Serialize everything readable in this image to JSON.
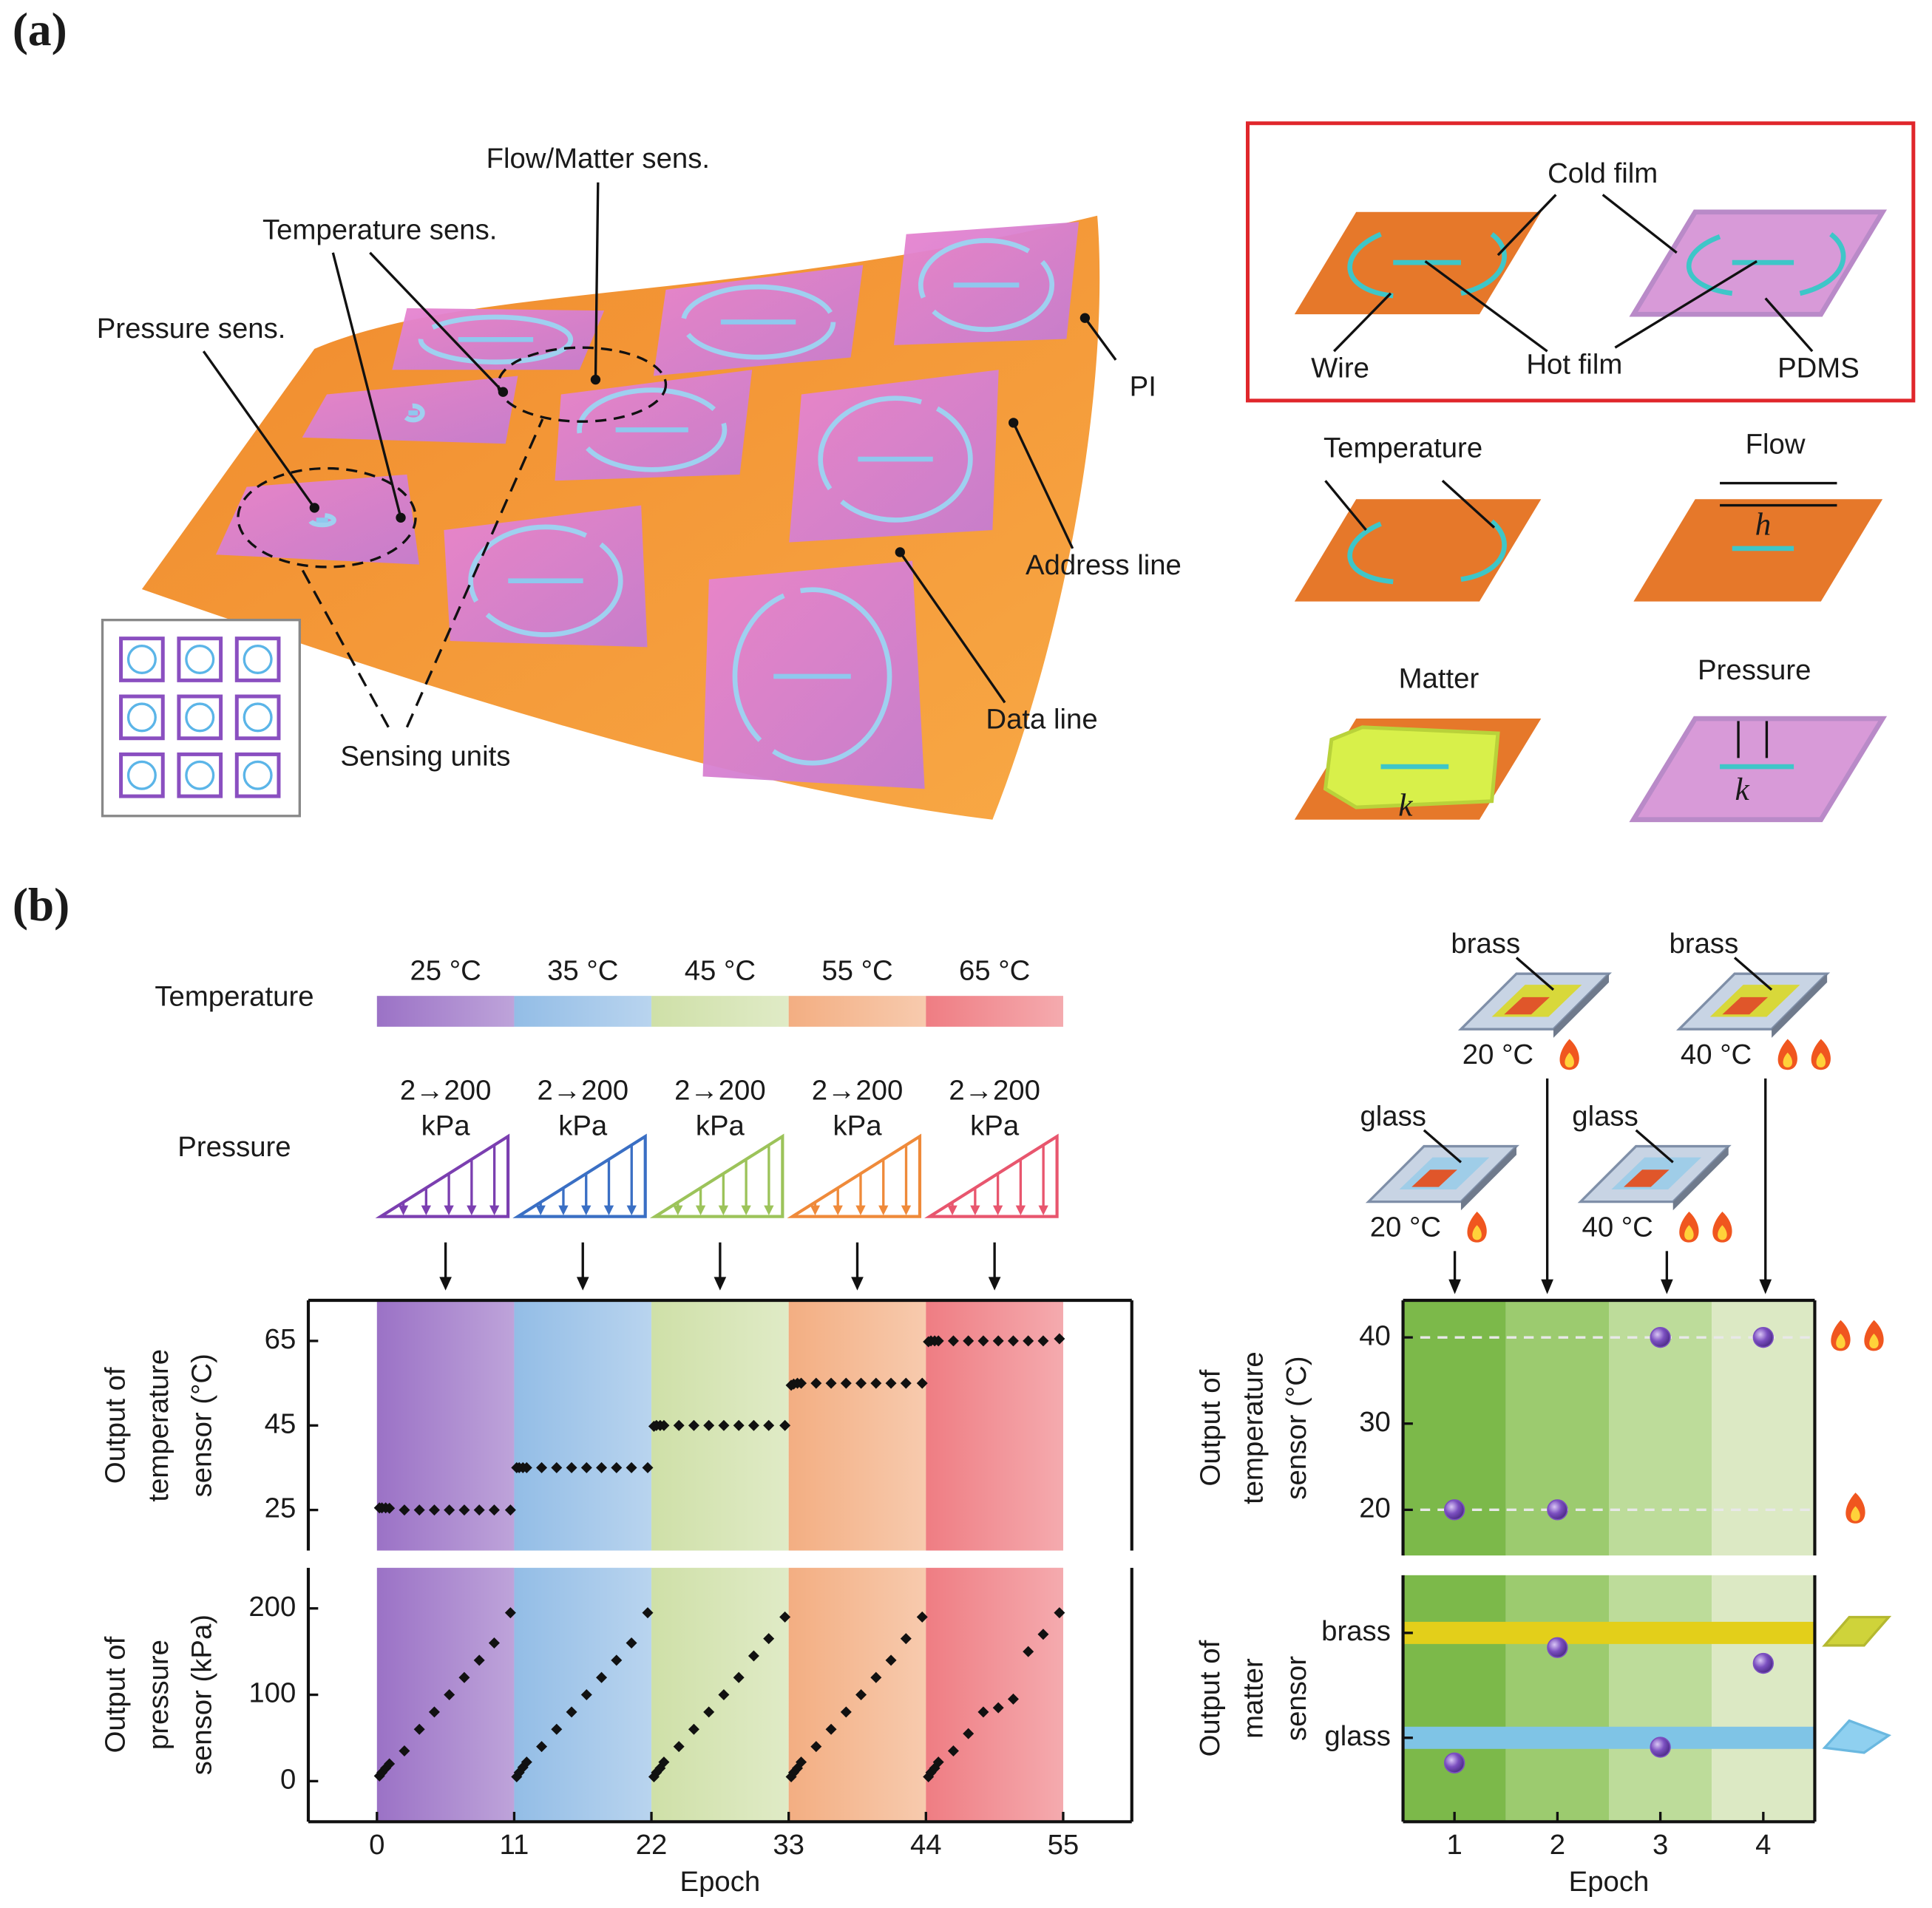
{
  "panel_a": {
    "label": "(a)",
    "callouts": {
      "flow_matter": "Flow/Matter sens.",
      "temperature": "Temperature sens.",
      "pressure": "Pressure sens.",
      "pi": "PI",
      "address": "Address line",
      "data": "Data line",
      "units": "Sensing units"
    },
    "inset": {
      "cold_film": "Cold film",
      "wire": "Wire",
      "hot_film": "Hot film",
      "pdms": "PDMS"
    },
    "modes": {
      "temperature": "Temperature",
      "flow": "Flow",
      "matter": "Matter",
      "pressure": "Pressure",
      "h": "h",
      "k_matter": "k",
      "k_pressure": "k"
    }
  },
  "panel_b": {
    "label": "(b)",
    "temperature_title": "Temperature",
    "temperatures": [
      "25 °C",
      "35 °C",
      "45 °C",
      "55 °C",
      "65 °C"
    ],
    "pressure_title": "Pressure",
    "pressure_ranges": [
      "2→200",
      "2→200",
      "2→200",
      "2→200",
      "2→200"
    ],
    "pressure_units": [
      "kPa",
      "kPa",
      "kPa",
      "kPa",
      "kPa"
    ],
    "pressure_colors": [
      "#7b3fb0",
      "#3a6fc4",
      "#9cc35a",
      "#ef8a3a",
      "#e8566e"
    ],
    "samples": [
      {
        "material": "brass",
        "temperature": "20 °C"
      },
      {
        "material": "brass",
        "temperature": "40 °C"
      },
      {
        "material": "glass",
        "temperature": "20 °C"
      },
      {
        "material": "glass",
        "temperature": "40 °C"
      }
    ]
  },
  "chart_data": [
    {
      "type": "scatter",
      "ylabel": [
        "Output of",
        "temperature",
        "sensor (°C)"
      ],
      "x": [
        0.2,
        0.4,
        0.7,
        1,
        2.2,
        3.4,
        4.6,
        5.8,
        7,
        8.2,
        9.4,
        10.7,
        11.2,
        11.4,
        11.7,
        12,
        13.2,
        14.4,
        15.6,
        16.8,
        18,
        19.2,
        20.4,
        21.7,
        22.2,
        22.4,
        22.7,
        23,
        24.2,
        25.4,
        26.6,
        27.8,
        29,
        30.2,
        31.4,
        32.7,
        33.2,
        33.4,
        33.7,
        34,
        35.2,
        36.4,
        37.6,
        38.8,
        40,
        41.2,
        42.4,
        43.7,
        44.2,
        44.4,
        44.7,
        45,
        46.2,
        47.4,
        48.6,
        49.8,
        51,
        52.2,
        53.4,
        54.7
      ],
      "values": [
        25.5,
        25.5,
        25.5,
        25.4,
        25,
        25,
        25,
        25,
        25,
        25,
        25,
        25,
        35,
        35,
        35,
        35,
        35,
        35,
        35,
        35,
        35,
        35,
        35,
        35,
        44.8,
        45,
        45,
        45,
        45,
        45,
        45,
        45,
        45,
        45,
        45,
        45,
        54.5,
        54.8,
        55,
        55,
        55,
        55,
        55,
        55,
        55,
        55,
        55,
        55,
        64.8,
        65,
        65,
        65,
        65,
        65,
        65,
        65,
        65,
        65,
        65,
        65.5
      ],
      "color": "#111111",
      "xlim": [
        -5.5,
        60.5
      ],
      "ylim": [
        15.4,
        74.6
      ],
      "yticks": [
        25,
        45,
        65
      ],
      "bands": [
        {
          "from": 0,
          "to": 11,
          "color": "#9b72c6"
        },
        {
          "from": 11,
          "to": 22,
          "color": "#93bde6"
        },
        {
          "from": 22,
          "to": 33,
          "color": "#cfe0a8"
        },
        {
          "from": 33,
          "to": 44,
          "color": "#f3ae82"
        },
        {
          "from": 44,
          "to": 55,
          "color": "#ef7d83"
        }
      ]
    },
    {
      "type": "scatter",
      "ylabel": [
        "Output of",
        "pressure",
        "sensor (kPa)"
      ],
      "xlabel": "Epoch",
      "x": [
        0.2,
        0.4,
        0.7,
        1,
        2.2,
        3.4,
        4.6,
        5.8,
        7,
        8.2,
        9.4,
        10.7,
        11.2,
        11.4,
        11.7,
        12,
        13.2,
        14.4,
        15.6,
        16.8,
        18,
        19.2,
        20.4,
        21.7,
        22.2,
        22.4,
        22.7,
        23,
        24.2,
        25.4,
        26.6,
        27.8,
        29,
        30.2,
        31.4,
        32.7,
        33.2,
        33.4,
        33.7,
        34,
        35.2,
        36.4,
        37.6,
        38.8,
        40,
        41.2,
        42.4,
        43.7,
        44.2,
        44.4,
        44.7,
        45,
        46.2,
        47.4,
        48.6,
        49.8,
        51,
        52.2,
        53.4,
        54.7
      ],
      "values": [
        6,
        10,
        15,
        20,
        35,
        60,
        80,
        100,
        120,
        140,
        160,
        195,
        5,
        10,
        16,
        22,
        40,
        60,
        80,
        100,
        120,
        140,
        160,
        195,
        5,
        10,
        15,
        22,
        40,
        60,
        80,
        100,
        120,
        145,
        165,
        190,
        5,
        10,
        15,
        22,
        40,
        60,
        80,
        100,
        120,
        140,
        165,
        190,
        5,
        10,
        15,
        22,
        35,
        55,
        80,
        85,
        95,
        150,
        170,
        195
      ],
      "color": "#111111",
      "xlim": [
        -5.5,
        60.5
      ],
      "ylim": [
        -47,
        247
      ],
      "yticks": [
        0,
        100,
        200
      ],
      "xticks": [
        0,
        11,
        22,
        33,
        44,
        55
      ],
      "bands": [
        {
          "from": 0,
          "to": 11,
          "color": "#9b72c6"
        },
        {
          "from": 11,
          "to": 22,
          "color": "#93bde6"
        },
        {
          "from": 22,
          "to": 33,
          "color": "#cfe0a8"
        },
        {
          "from": 33,
          "to": 44,
          "color": "#f3ae82"
        },
        {
          "from": 44,
          "to": 55,
          "color": "#ef7d83"
        }
      ]
    },
    {
      "type": "scatter",
      "ylabel": [
        "Output of",
        "temperature",
        "sensor (°C)"
      ],
      "x": [
        1,
        2,
        3,
        4
      ],
      "values": [
        20,
        20,
        40,
        40
      ],
      "color": "#7b4fc0",
      "xlim": [
        0.5,
        4.5
      ],
      "ylim": [
        14.7,
        44.3
      ],
      "yticks": [
        20,
        30,
        40
      ],
      "reference_lines": [
        20,
        40
      ],
      "background_colors": [
        "#7cb94a",
        "#9ccb6f",
        "#bddc9a",
        "#dce9c4"
      ]
    },
    {
      "type": "scatter",
      "ylabel": [
        "Output of",
        "matter",
        "sensor"
      ],
      "xlabel": "Epoch",
      "x": [
        1,
        2,
        3,
        4
      ],
      "values": [
        -0.24,
        0.86,
        -0.09,
        0.71
      ],
      "color": "#7b4fc0",
      "xlim": [
        0.5,
        4.5
      ],
      "ylim": [
        -0.8,
        1.55
      ],
      "yticks": [
        {
          "value": 1,
          "label": "brass"
        },
        {
          "value": 0,
          "label": "glass"
        }
      ],
      "band_colors": [
        "#e3cf1a",
        "#7fc4e6"
      ],
      "xticks": [
        1,
        2,
        3,
        4
      ],
      "background_colors": [
        "#7cb94a",
        "#9ccb6f",
        "#bddc9a",
        "#dce9c4"
      ]
    }
  ]
}
